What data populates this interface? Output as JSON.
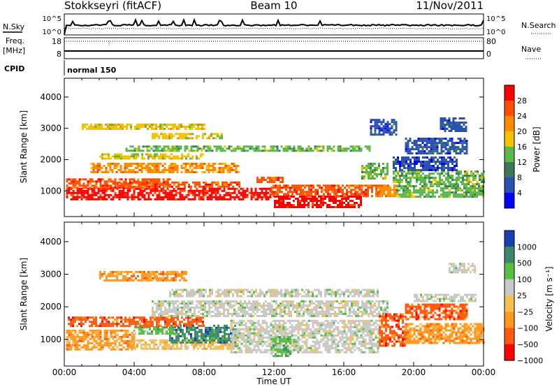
{
  "header": {
    "station": "Stokkseyri (fitACF)",
    "beam": "Beam 10",
    "date": "11/Nov/2011"
  },
  "top_panels": {
    "nsky_label": "N.Sky",
    "nsearch_label": "N.Search",
    "nsky_ticks": [
      "10^5",
      "10^0"
    ],
    "nsearch_ticks": [
      "10^5",
      "10^0"
    ],
    "freq_label_1": "Freq.",
    "freq_label_2": "[MHz]",
    "freq_ticks": [
      "18",
      "8"
    ],
    "nave_label": "Nave",
    "nave_ticks": [
      "80",
      "0"
    ],
    "cpid_label": "CPID",
    "cpid_value": "normal 150"
  },
  "chart_data": [
    {
      "type": "heatmap",
      "name": "power",
      "ylabel": "Slant Range [km]",
      "xlim": [
        "00:00",
        "24:00"
      ],
      "ylim": [
        180,
        4600
      ],
      "yticks": [
        "1000",
        "2000",
        "3000",
        "4000"
      ],
      "colorbar": {
        "label": "Power [dB]",
        "ticks": [
          "28",
          "24",
          "20",
          "16",
          "12",
          "8",
          "4"
        ],
        "colors": [
          "#ff0000",
          "#ff5000",
          "#ff8c00",
          "#f5c200",
          "#58b848",
          "#3a7a5a",
          "#2a50b0",
          "#0000ff"
        ]
      },
      "regions": [
        {
          "t0": 0.1,
          "t1": 11.8,
          "r0": 700,
          "r1": 1100,
          "level": 0
        },
        {
          "t0": 0.1,
          "t1": 6.0,
          "r0": 1100,
          "r1": 1400,
          "level": 1
        },
        {
          "t0": 3.0,
          "t1": 10.0,
          "r0": 1100,
          "r1": 1300,
          "level": 1
        },
        {
          "t0": 1.5,
          "t1": 10.0,
          "r0": 1600,
          "r1": 1900,
          "level": 2
        },
        {
          "t0": 2.0,
          "t1": 8.0,
          "r0": 2050,
          "r1": 2200,
          "level": 3
        },
        {
          "t0": 5.0,
          "t1": 9.0,
          "r0": 2700,
          "r1": 2850,
          "level": 3
        },
        {
          "t0": 1.0,
          "t1": 8.0,
          "r0": 3000,
          "r1": 3150,
          "level": 3
        },
        {
          "t0": 3.5,
          "t1": 17.5,
          "r0": 2300,
          "r1": 2450,
          "level": 4
        },
        {
          "t0": 11.8,
          "t1": 18.3,
          "r0": 850,
          "r1": 1200,
          "level": 1
        },
        {
          "t0": 12.0,
          "t1": 17.0,
          "r0": 500,
          "r1": 850,
          "level": 0
        },
        {
          "t0": 11.0,
          "t1": 12.5,
          "r0": 1250,
          "r1": 1450,
          "level": 1
        },
        {
          "t0": 17.0,
          "t1": 18.5,
          "r0": 1400,
          "r1": 1900,
          "level": 4
        },
        {
          "t0": 18.0,
          "t1": 19.0,
          "r0": 800,
          "r1": 1200,
          "level": 2
        },
        {
          "t0": 19.0,
          "t1": 24.0,
          "r0": 800,
          "r1": 1250,
          "level": 4
        },
        {
          "t0": 18.8,
          "t1": 24.0,
          "r0": 1300,
          "r1": 1650,
          "level": 4
        },
        {
          "t0": 18.8,
          "t1": 22.5,
          "r0": 1650,
          "r1": 2100,
          "level": 6
        },
        {
          "t0": 19.5,
          "t1": 23.0,
          "r0": 2200,
          "r1": 2700,
          "level": 6
        },
        {
          "t0": 21.5,
          "t1": 23.0,
          "r0": 2900,
          "r1": 3350,
          "level": 6
        },
        {
          "t0": 17.5,
          "t1": 19.0,
          "r0": 2800,
          "r1": 3300,
          "level": 6
        }
      ]
    },
    {
      "type": "heatmap",
      "name": "velocity",
      "ylabel": "Slant Range [km]",
      "xlabel": "Time UT",
      "xlim": [
        "00:00",
        "24:00"
      ],
      "ylim": [
        180,
        4600
      ],
      "xticks": [
        "00:00",
        "04:00",
        "08:00",
        "12:00",
        "16:00",
        "20:00",
        "00:00"
      ],
      "yticks": [
        "1000",
        "2000",
        "3000",
        "4000"
      ],
      "colorbar": {
        "label": "Velocity [m s⁻¹]",
        "ticks": [
          "1000",
          "500",
          "100",
          "25",
          "−25",
          "−100",
          "−500",
          "−1000"
        ],
        "colors": [
          "#1a3fb0",
          "#3a8a6a",
          "#58c040",
          "#c8c8c8",
          "#f5c050",
          "#ff9a20",
          "#ff5a10",
          "#ff0000"
        ]
      },
      "regions": [
        {
          "t0": 0.1,
          "t1": 4.0,
          "r0": 700,
          "r1": 1300,
          "level": 5
        },
        {
          "t0": 4.0,
          "t1": 10.0,
          "r0": 700,
          "r1": 1000,
          "level": 4
        },
        {
          "t0": 6.0,
          "t1": 9.8,
          "r0": 900,
          "r1": 1450,
          "level": 1
        },
        {
          "t0": 4.0,
          "t1": 6.5,
          "r0": 1150,
          "r1": 1400,
          "level": 2
        },
        {
          "t0": 0.2,
          "t1": 8.0,
          "r0": 1400,
          "r1": 1700,
          "level": 6
        },
        {
          "t0": 9.5,
          "t1": 18.0,
          "r0": 600,
          "r1": 1600,
          "level": 3
        },
        {
          "t0": 5.0,
          "t1": 18.5,
          "r0": 1700,
          "r1": 2200,
          "level": 3
        },
        {
          "t0": 6.0,
          "t1": 18.0,
          "r0": 2350,
          "r1": 2550,
          "level": 3
        },
        {
          "t0": 11.8,
          "t1": 13.0,
          "r0": 500,
          "r1": 1100,
          "level": 2
        },
        {
          "t0": 18.0,
          "t1": 19.5,
          "r0": 800,
          "r1": 1800,
          "level": 6
        },
        {
          "t0": 19.5,
          "t1": 24.0,
          "r0": 900,
          "r1": 1500,
          "level": 5
        },
        {
          "t0": 19.5,
          "t1": 23.0,
          "r0": 1600,
          "r1": 2100,
          "level": 6
        },
        {
          "t0": 20.0,
          "t1": 23.5,
          "r0": 2200,
          "r1": 2400,
          "level": 3
        },
        {
          "t0": 22.0,
          "t1": 23.5,
          "r0": 3050,
          "r1": 3350,
          "level": 3
        },
        {
          "t0": 2.0,
          "t1": 7.0,
          "r0": 2800,
          "r1": 3100,
          "level": 5
        }
      ]
    }
  ]
}
